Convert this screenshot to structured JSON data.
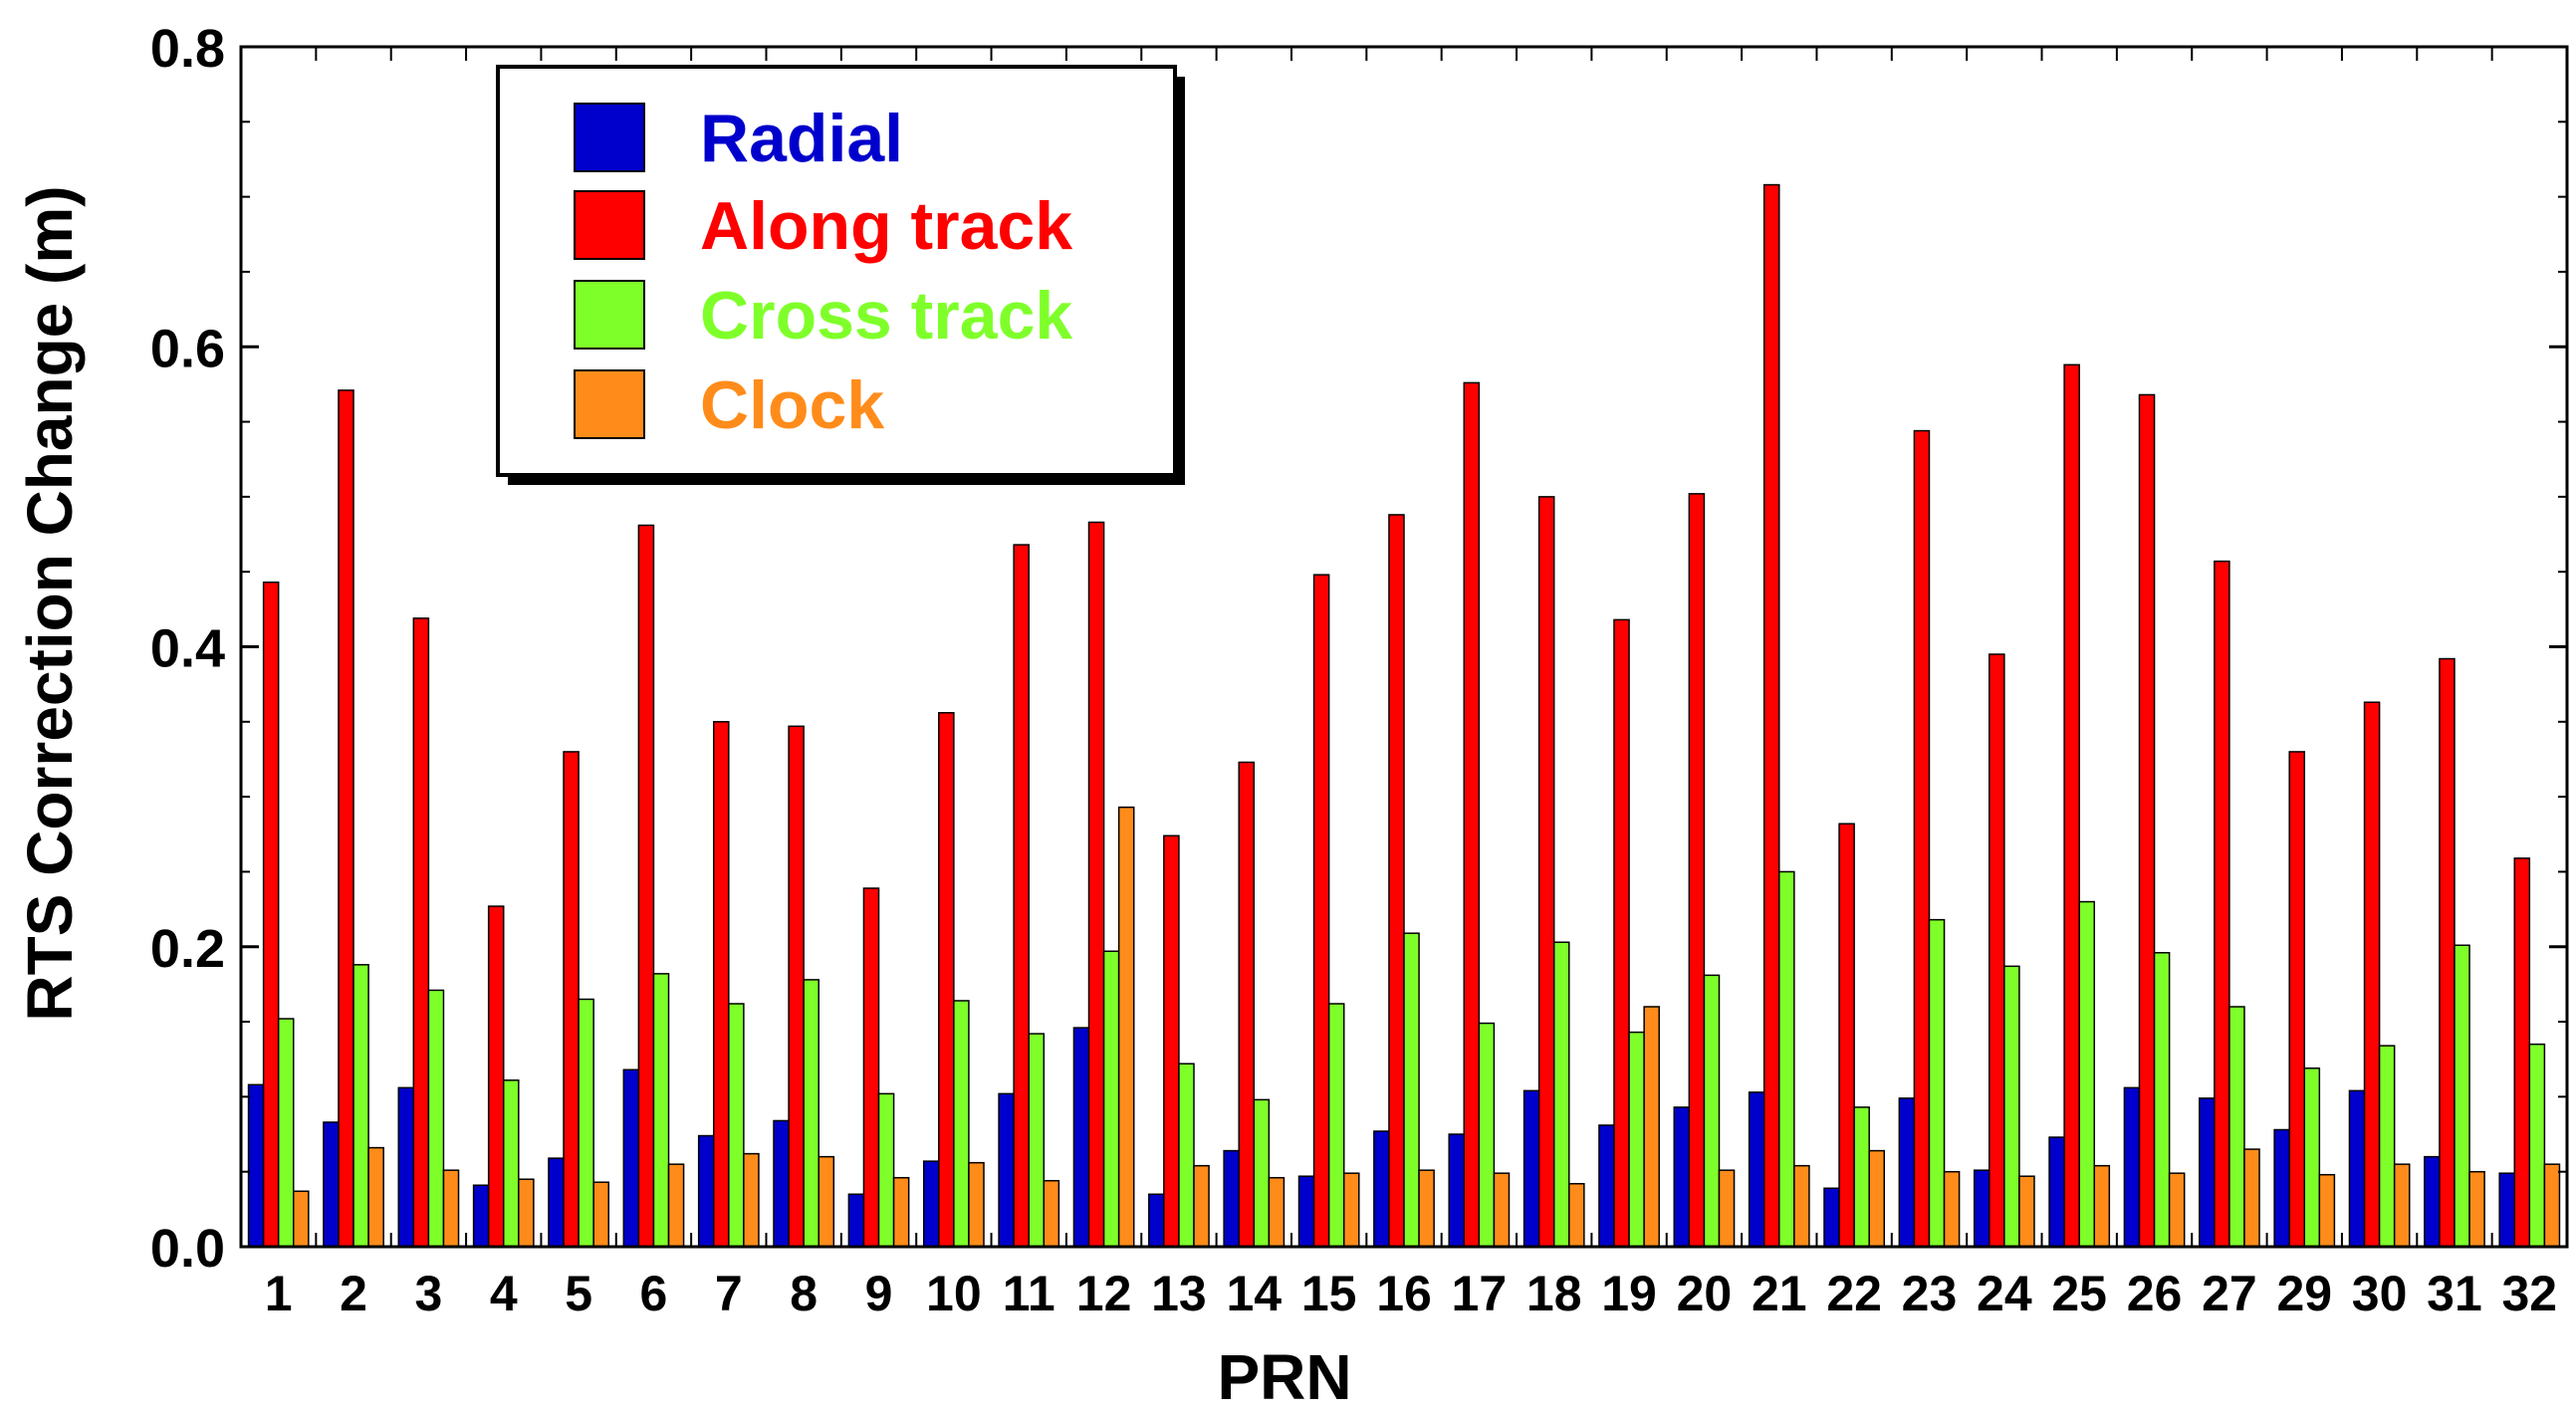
{
  "chart_data": {
    "type": "bar",
    "xlabel": "PRN",
    "ylabel": "RTS Correction Change (m)",
    "ylim": [
      0,
      0.8
    ],
    "yticks": [
      "0.0",
      "0.2",
      "0.4",
      "0.6",
      "0.8"
    ],
    "grid": false,
    "legend_position": "top-left",
    "categories": [
      "1",
      "2",
      "3",
      "4",
      "5",
      "6",
      "7",
      "8",
      "9",
      "10",
      "11",
      "12",
      "13",
      "14",
      "15",
      "16",
      "17",
      "18",
      "19",
      "20",
      "21",
      "22",
      "23",
      "24",
      "25",
      "26",
      "27",
      "29",
      "30",
      "31",
      "32"
    ],
    "series": [
      {
        "name": "Radial",
        "color": "#0000cc",
        "values": [
          0.108,
          0.083,
          0.106,
          0.041,
          0.059,
          0.118,
          0.074,
          0.084,
          0.035,
          0.057,
          0.102,
          0.146,
          0.035,
          0.064,
          0.047,
          0.077,
          0.075,
          0.104,
          0.081,
          0.093,
          0.103,
          0.039,
          0.099,
          0.051,
          0.073,
          0.106,
          0.099,
          0.078,
          0.104,
          0.06,
          0.049
        ]
      },
      {
        "name": "Along track",
        "color": "#ff0000",
        "values": [
          0.443,
          0.571,
          0.419,
          0.227,
          0.33,
          0.481,
          0.35,
          0.347,
          0.239,
          0.356,
          0.468,
          0.483,
          0.274,
          0.323,
          0.448,
          0.488,
          0.576,
          0.5,
          0.418,
          0.502,
          0.708,
          0.282,
          0.544,
          0.395,
          0.588,
          0.568,
          0.457,
          0.33,
          0.363,
          0.392,
          0.259
        ]
      },
      {
        "name": "Cross track",
        "color": "#7fff2a",
        "values": [
          0.152,
          0.188,
          0.171,
          0.111,
          0.165,
          0.182,
          0.162,
          0.178,
          0.102,
          0.164,
          0.142,
          0.197,
          0.122,
          0.098,
          0.162,
          0.209,
          0.149,
          0.203,
          0.143,
          0.181,
          0.25,
          0.093,
          0.218,
          0.187,
          0.23,
          0.196,
          0.16,
          0.119,
          0.134,
          0.201,
          0.135
        ]
      },
      {
        "name": "Clock",
        "color": "#ff8c1a",
        "values": [
          0.037,
          0.066,
          0.051,
          0.045,
          0.043,
          0.055,
          0.062,
          0.06,
          0.046,
          0.056,
          0.044,
          0.293,
          0.054,
          0.046,
          0.049,
          0.051,
          0.049,
          0.042,
          0.16,
          0.051,
          0.054,
          0.064,
          0.05,
          0.047,
          0.054,
          0.049,
          0.065,
          0.048,
          0.055,
          0.05,
          0.055
        ]
      }
    ]
  }
}
